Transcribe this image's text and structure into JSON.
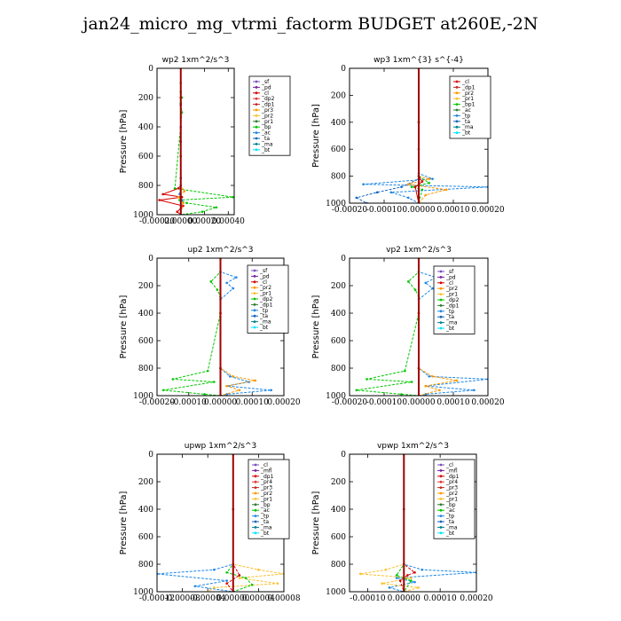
{
  "figure_title": "jan24_micro_mg_vtrmi_factorm  BUDGET at260E,-2N",
  "chart_data": [
    {
      "type": "line",
      "title": "wp2   1xm^2/s^3",
      "ylabel": "Pressure [hPa]",
      "ylim": [
        1000,
        0
      ],
      "xlim": [
        -0.0002,
        0.00045
      ],
      "xticks": [
        "-0.00020",
        "0.00000",
        "0.00020",
        "0.00040"
      ],
      "xtick_values": [
        -0.0002,
        0.0,
        0.0002,
        0.0004
      ],
      "yticks": [
        0,
        200,
        400,
        600,
        800,
        1000
      ],
      "legend": [
        "_sf",
        "_pd",
        "_cl",
        "_dp2",
        "_dp1",
        "_pr3",
        "_pr2",
        "_pr1",
        "_bp",
        "_ac",
        "_ta",
        "_ma",
        "_bt"
      ],
      "legend_colors": [
        "#7a4fbf",
        "#7b1fa2",
        "#d50000",
        "#e53935",
        "#c62828",
        "#ff9800",
        "#fbc02d",
        "#2e7d32",
        "#00c800",
        "#1e88e5",
        "#1565c0",
        "#00838f",
        "#00e5ff"
      ],
      "series": [
        {
          "name": "_pr1",
          "color": "#00c800",
          "x": [
            0,
            0,
            0,
            1e-05,
            0,
            1e-05,
            -5e-05,
            0.00044,
            -1e-05,
            5e-05,
            0.0003,
            0.00018,
            0
          ],
          "y": [
            0,
            100,
            160,
            200,
            240,
            300,
            820,
            880,
            900,
            920,
            950,
            980,
            1000
          ]
        },
        {
          "name": "_cl",
          "color": "#d50000",
          "x": [
            0,
            0,
            0,
            0,
            -2e-05,
            -0.00015,
            1e-05,
            -0.00018,
            2e-05,
            -3e-05,
            0
          ],
          "y": [
            0,
            200,
            600,
            800,
            820,
            860,
            880,
            900,
            940,
            980,
            1000
          ]
        },
        {
          "name": "_pr3",
          "color": "#ff9800",
          "x": [
            0,
            0,
            0,
            3e-05,
            -2e-05,
            2e-05,
            0
          ],
          "y": [
            0,
            400,
            800,
            840,
            880,
            920,
            1000
          ]
        },
        {
          "name": "_bp",
          "color": "#1e88e5",
          "x": [
            0,
            0,
            0,
            -1e-05,
            1e-05,
            0
          ],
          "y": [
            0,
            400,
            800,
            860,
            900,
            1000
          ]
        },
        {
          "name": "_bt",
          "color": "#7b1fa2",
          "x": [
            0,
            0,
            0,
            0,
            0
          ],
          "y": [
            0,
            250,
            500,
            750,
            1000
          ]
        }
      ]
    },
    {
      "type": "line",
      "title": "wp3   1xm^{3} s^{-4}",
      "ylabel": "Pressure [hPa]",
      "ylim": [
        1000,
        0
      ],
      "xlim": [
        -0.0002,
        0.0002
      ],
      "xticks": [
        "-0.00020",
        "-0.00010",
        "0.00000",
        "0.00010",
        "0.00020"
      ],
      "xtick_values": [
        -0.0002,
        -0.0001,
        0.0,
        0.0001,
        0.0002
      ],
      "yticks": [
        0,
        200,
        400,
        600,
        800,
        1000
      ],
      "legend": [
        "_cl",
        "_dp1",
        "_pr2",
        "_pr1",
        "_bp1",
        "_ac",
        "_tp",
        "_ta",
        "_ma",
        "_bt"
      ],
      "legend_colors": [
        "#d50000",
        "#c62828",
        "#ff9800",
        "#fbc02d",
        "#00c800",
        "#2e7d32",
        "#1e88e5",
        "#1565c0",
        "#00838f",
        "#00e5ff"
      ],
      "series": [
        {
          "name": "_tp",
          "color": "#1e88e5",
          "x": [
            0,
            0,
            0,
            4e-05,
            -0.00016,
            0.0002,
            -8e-05,
            -3e-05,
            0
          ],
          "y": [
            0,
            400,
            780,
            820,
            860,
            880,
            920,
            960,
            1000
          ]
        },
        {
          "name": "_ta",
          "color": "#1565c0",
          "x": [
            0,
            0,
            0,
            -5e-05,
            -0.00012,
            -0.00018,
            -0.00015
          ],
          "y": [
            0,
            600,
            820,
            880,
            920,
            960,
            1000
          ]
        },
        {
          "name": "_pr2",
          "color": "#ff9800",
          "x": [
            0,
            0,
            0,
            3e-05,
            -3e-05,
            8e-05,
            2e-05,
            0
          ],
          "y": [
            0,
            400,
            800,
            820,
            860,
            900,
            940,
            1000
          ]
        },
        {
          "name": "_bp1",
          "color": "#00c800",
          "x": [
            0,
            0,
            0,
            3e-05,
            -2e-05,
            1e-05,
            0
          ],
          "y": [
            0,
            400,
            800,
            850,
            880,
            900,
            1000
          ]
        },
        {
          "name": "_cl",
          "color": "#d50000",
          "x": [
            0,
            0,
            0,
            1e-05,
            -1e-05,
            0
          ],
          "y": [
            0,
            400,
            800,
            840,
            880,
            1000
          ]
        }
      ]
    },
    {
      "type": "line",
      "title": "up2   1xm^2/s^3",
      "ylabel": "Pressure [hPa]",
      "ylim": [
        1000,
        0
      ],
      "xlim": [
        -0.0002,
        0.0002
      ],
      "xticks": [
        "-0.00020",
        "-0.00010",
        "0.00000",
        "0.00010",
        "0.00020"
      ],
      "xtick_values": [
        -0.0002,
        -0.0001,
        0.0,
        0.0001,
        0.0002
      ],
      "yticks": [
        0,
        200,
        400,
        600,
        800,
        1000
      ],
      "legend": [
        "_sf",
        "_pd",
        "_cl",
        "_pr2",
        "_pr1",
        "_dp2",
        "_dp1",
        "_tp",
        "_ta",
        "_ma",
        "_bt"
      ],
      "legend_colors": [
        "#7a4fbf",
        "#7b1fa2",
        "#d50000",
        "#ff9800",
        "#fbc02d",
        "#00c800",
        "#2e7d32",
        "#1e88e5",
        "#1565c0",
        "#00838f",
        "#00e5ff"
      ],
      "series": [
        {
          "name": "_dp2",
          "color": "#00c800",
          "x": [
            0,
            0,
            -3e-05,
            -1e-05,
            0,
            0,
            -4e-05,
            -0.00015,
            -2e-05,
            -0.00018,
            -5e-05,
            0
          ],
          "y": [
            0,
            100,
            170,
            230,
            280,
            400,
            820,
            880,
            900,
            960,
            990,
            1000
          ]
        },
        {
          "name": "_tp",
          "color": "#1e88e5",
          "x": [
            0,
            0,
            5e-05,
            2e-05,
            4e-05,
            0,
            0,
            3e-05,
            9e-05,
            2e-05,
            0.00016,
            2e-05,
            0
          ],
          "y": [
            0,
            100,
            140,
            180,
            220,
            300,
            800,
            860,
            900,
            930,
            960,
            990,
            1000
          ]
        },
        {
          "name": "_pr2",
          "color": "#ff9800",
          "x": [
            0,
            0,
            0,
            4e-05,
            0.00011,
            2e-05,
            6e-05,
            0
          ],
          "y": [
            0,
            400,
            800,
            860,
            890,
            930,
            960,
            1000
          ]
        },
        {
          "name": "_cl",
          "color": "#d50000",
          "x": [
            0,
            0,
            0,
            0
          ],
          "y": [
            0,
            400,
            800,
            1000
          ]
        }
      ]
    },
    {
      "type": "line",
      "title": "vp2   1xm^2/s^3",
      "ylabel": "Pressure [hPa]",
      "ylim": [
        1000,
        0
      ],
      "xlim": [
        -0.0002,
        0.0002
      ],
      "xticks": [
        "-0.00020",
        "-0.00010",
        "0.00000",
        "0.00010",
        "0.00020"
      ],
      "xtick_values": [
        -0.0002,
        -0.0001,
        0.0,
        0.0001,
        0.0002
      ],
      "yticks": [
        0,
        200,
        400,
        600,
        800,
        1000
      ],
      "legend": [
        "_sf",
        "_pd",
        "_cl",
        "_pr2",
        "_pr1",
        "_dp2",
        "_dp1",
        "_tp",
        "_ta",
        "_ma",
        "_bt"
      ],
      "legend_colors": [
        "#7a4fbf",
        "#7b1fa2",
        "#d50000",
        "#ff9800",
        "#fbc02d",
        "#00c800",
        "#2e7d32",
        "#1e88e5",
        "#1565c0",
        "#00838f",
        "#00e5ff"
      ],
      "series": [
        {
          "name": "_dp2",
          "color": "#00c800",
          "x": [
            0,
            0,
            -3e-05,
            -1e-05,
            0,
            0,
            -4e-05,
            -0.00015,
            -2e-05,
            -0.00018,
            -5e-05,
            0
          ],
          "y": [
            0,
            100,
            170,
            230,
            280,
            400,
            820,
            880,
            900,
            960,
            990,
            1000
          ]
        },
        {
          "name": "_tp",
          "color": "#1e88e5",
          "x": [
            0,
            0,
            5e-05,
            2e-05,
            4e-05,
            0,
            0,
            3e-05,
            0.0002,
            2e-05,
            0.00016,
            2e-05,
            0
          ],
          "y": [
            0,
            100,
            140,
            180,
            220,
            300,
            800,
            860,
            880,
            930,
            960,
            990,
            1000
          ]
        },
        {
          "name": "_pr2",
          "color": "#ff9800",
          "x": [
            0,
            0,
            0,
            4e-05,
            0.00011,
            2e-05,
            6e-05,
            0
          ],
          "y": [
            0,
            400,
            800,
            860,
            890,
            930,
            960,
            1000
          ]
        },
        {
          "name": "_cl",
          "color": "#d50000",
          "x": [
            0,
            0,
            0,
            0
          ],
          "y": [
            0,
            400,
            800,
            1000
          ]
        }
      ]
    },
    {
      "type": "line",
      "title": "upwp   1xm^2/s^3",
      "ylabel": "Pressure [hPa]",
      "ylim": [
        1000,
        0
      ],
      "xlim": [
        -0.00012,
        8e-05
      ],
      "xticks": [
        "-0.00012",
        "-0.00008",
        "-0.00004",
        "0.00000",
        "0.00004",
        "0.00008"
      ],
      "xtick_values": [
        -0.00012,
        -8e-05,
        -4e-05,
        0.0,
        4e-05,
        8e-05
      ],
      "yticks": [
        0,
        200,
        400,
        600,
        800,
        1000
      ],
      "legend": [
        "_cl",
        "_mfl",
        "_dp1",
        "_pr4",
        "_pr3",
        "_pr2",
        "_pr1",
        "_bp",
        "_ac",
        "_tp",
        "_ta",
        "_ma",
        "_bt"
      ],
      "legend_colors": [
        "#7a4fbf",
        "#7b1fa2",
        "#d50000",
        "#e53935",
        "#c62828",
        "#ff9800",
        "#fbc02d",
        "#2e7d32",
        "#00c800",
        "#1e88e5",
        "#1565c0",
        "#00838f",
        "#00e5ff"
      ],
      "series": [
        {
          "name": "_tp",
          "color": "#1e88e5",
          "x": [
            0,
            0,
            0,
            -3e-05,
            -0.00012,
            -1e-05,
            -6e-05,
            0
          ],
          "y": [
            0,
            400,
            800,
            840,
            870,
            920,
            960,
            1000
          ]
        },
        {
          "name": "_pr2",
          "color": "#fbc02d",
          "x": [
            0,
            0,
            0,
            4e-05,
            8e-05,
            1e-05,
            7e-05,
            -3e-05,
            -4e-05
          ],
          "y": [
            0,
            400,
            800,
            840,
            870,
            900,
            940,
            970,
            1000
          ]
        },
        {
          "name": "_bp",
          "color": "#00c800",
          "x": [
            0,
            0,
            0,
            -1e-05,
            2e-05,
            3e-05,
            0
          ],
          "y": [
            0,
            400,
            800,
            860,
            900,
            950,
            1000
          ]
        },
        {
          "name": "_dp1",
          "color": "#d50000",
          "x": [
            0,
            0,
            0,
            1e-05,
            -1e-05,
            0
          ],
          "y": [
            0,
            400,
            800,
            880,
            940,
            1000
          ]
        },
        {
          "name": "_mfl",
          "color": "#7b1fa2",
          "x": [
            0,
            0,
            0,
            0
          ],
          "y": [
            0,
            400,
            800,
            1000
          ]
        }
      ]
    },
    {
      "type": "line",
      "title": "vpwp   1xm^2/s^3",
      "ylabel": "Pressure [hPa]",
      "ylim": [
        1000,
        0
      ],
      "xlim": [
        -0.00015,
        0.0002
      ],
      "xticks": [
        "-0.00010",
        "0.00000",
        "0.00010",
        "0.00020"
      ],
      "xtick_values": [
        -0.0001,
        0.0,
        0.0001,
        0.0002
      ],
      "yticks": [
        0,
        200,
        400,
        600,
        800,
        1000
      ],
      "legend": [
        "_cl",
        "_mfl",
        "_dp1",
        "_pr4",
        "_pr3",
        "_pr2",
        "_pr1",
        "_bp",
        "_ac",
        "_tp",
        "_ta",
        "_ma",
        "_bt"
      ],
      "legend_colors": [
        "#7a4fbf",
        "#7b1fa2",
        "#d50000",
        "#e53935",
        "#c62828",
        "#ff9800",
        "#fbc02d",
        "#2e7d32",
        "#00c800",
        "#1e88e5",
        "#1565c0",
        "#00838f",
        "#00e5ff"
      ],
      "series": [
        {
          "name": "_tp",
          "color": "#1e88e5",
          "x": [
            0,
            0,
            0,
            5e-05,
            0.0002,
            -2e-05,
            3e-05,
            -4e-05,
            0
          ],
          "y": [
            0,
            400,
            800,
            840,
            860,
            900,
            930,
            970,
            1000
          ]
        },
        {
          "name": "_pr2",
          "color": "#fbc02d",
          "x": [
            0,
            0,
            0,
            -5e-05,
            -0.00012,
            2e-05,
            -6e-05,
            4e-05,
            0
          ],
          "y": [
            0,
            400,
            800,
            840,
            870,
            900,
            940,
            970,
            1000
          ]
        },
        {
          "name": "_dp1",
          "color": "#d50000",
          "x": [
            0,
            0,
            0,
            3e-05,
            1e-05,
            -1e-05,
            0
          ],
          "y": [
            0,
            400,
            800,
            860,
            880,
            920,
            1000
          ]
        },
        {
          "name": "_bp",
          "color": "#00c800",
          "x": [
            0,
            0,
            0,
            -2e-05,
            2e-05,
            0
          ],
          "y": [
            0,
            400,
            800,
            880,
            920,
            1000
          ]
        },
        {
          "name": "_mfl",
          "color": "#7b1fa2",
          "x": [
            0,
            0,
            0,
            0
          ],
          "y": [
            0,
            400,
            800,
            1000
          ]
        }
      ]
    }
  ]
}
